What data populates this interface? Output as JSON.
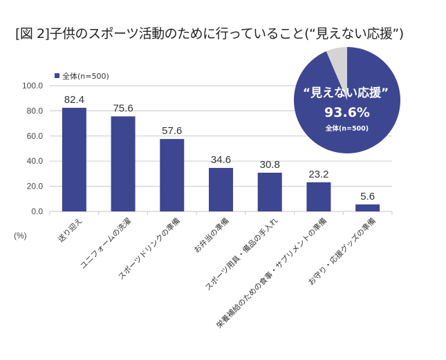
{
  "chart_data": {
    "type": "bar",
    "title": "[図 2]子供のスポーツ活動のために行っていること(“見えない応援”)",
    "ylabel": "(%)",
    "xlabel": "",
    "ylim": [
      0,
      100
    ],
    "yticks": [
      "0.0",
      "20.0",
      "40.0",
      "60.0",
      "80.0",
      "100.0"
    ],
    "grid": true,
    "legend": {
      "position": "top-left",
      "entries": [
        "全体(n=500)"
      ]
    },
    "categories": [
      "送り迎え",
      "ユニフォームの洗濯",
      "スポーツドリンクの準備",
      "お弁当の準備",
      "スポーツ用具・備品の手入れ",
      "栄養補給のための食事・サプリメントの準備",
      "お守り・応援グッズの準備"
    ],
    "series": [
      {
        "name": "全体(n=500)",
        "values": [
          82.4,
          75.6,
          57.6,
          34.6,
          30.8,
          23.2,
          5.6
        ],
        "labels": [
          "82.4",
          "75.6",
          "57.6",
          "34.6",
          "30.8",
          "23.2",
          "5.6"
        ]
      }
    ],
    "inset_pie": {
      "type": "pie",
      "values": [
        93.6,
        6.4
      ],
      "title": "“見えない応援”",
      "value_label": "93.6%",
      "subtitle": "全体(n=500)"
    }
  },
  "colors": {
    "bar": "#3d4690",
    "pie_main": "#3d4690",
    "pie_rest": "#d4d4d4",
    "grid": "#d0d0d0"
  }
}
